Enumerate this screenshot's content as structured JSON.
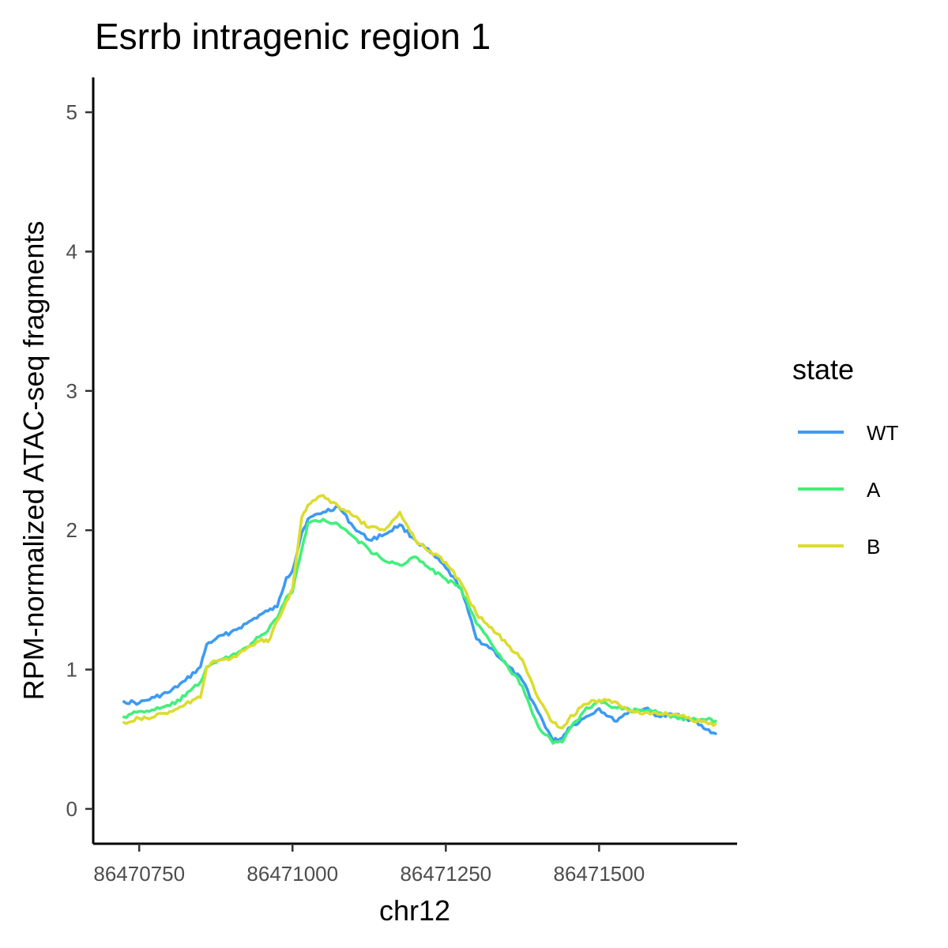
{
  "chart_data": {
    "type": "line",
    "title": "Esrrb intragenic region 1",
    "xlabel": "chr12",
    "ylabel": "RPM-normalized ATAC-seq fragments",
    "xlim": [
      86470675,
      86471725
    ],
    "ylim": [
      -0.25,
      5.25
    ],
    "xticks": [
      86470750,
      86471000,
      86471250,
      86471500
    ],
    "yticks": [
      0,
      1,
      2,
      3,
      4,
      5
    ],
    "grid": false,
    "legend": {
      "title": "state",
      "position": "right"
    },
    "x": [
      86470725,
      86470750,
      86470775,
      86470800,
      86470825,
      86470850,
      86470860,
      86470875,
      86470900,
      86470925,
      86470950,
      86470960,
      86470975,
      86470990,
      86471000,
      86471015,
      86471025,
      86471050,
      86471075,
      86471100,
      86471125,
      86471150,
      86471175,
      86471200,
      86471225,
      86471250,
      86471275,
      86471300,
      86471325,
      86471350,
      86471375,
      86471400,
      86471425,
      86471440,
      86471450,
      86471475,
      86471500,
      86471525,
      86471550,
      86471575,
      86471600,
      86471625,
      86471650,
      86471675,
      86471690
    ],
    "series": [
      {
        "name": "WT",
        "color": "#3d9bf1",
        "values": [
          0.77,
          0.76,
          0.8,
          0.84,
          0.92,
          1.02,
          1.18,
          1.22,
          1.27,
          1.33,
          1.4,
          1.42,
          1.45,
          1.66,
          1.71,
          1.98,
          2.08,
          2.13,
          2.17,
          2.02,
          1.93,
          1.97,
          2.04,
          1.93,
          1.84,
          1.73,
          1.58,
          1.22,
          1.15,
          1.03,
          0.92,
          0.7,
          0.49,
          0.51,
          0.58,
          0.65,
          0.72,
          0.63,
          0.7,
          0.72,
          0.66,
          0.68,
          0.64,
          0.57,
          0.54
        ]
      },
      {
        "name": "A",
        "color": "#41f07c",
        "values": [
          0.66,
          0.7,
          0.71,
          0.74,
          0.81,
          0.91,
          1.02,
          1.05,
          1.1,
          1.16,
          1.25,
          1.28,
          1.37,
          1.52,
          1.56,
          1.86,
          2.05,
          2.08,
          2.04,
          1.95,
          1.86,
          1.78,
          1.75,
          1.81,
          1.72,
          1.65,
          1.58,
          1.33,
          1.18,
          1.03,
          0.88,
          0.6,
          0.47,
          0.48,
          0.56,
          0.7,
          0.78,
          0.73,
          0.71,
          0.7,
          0.69,
          0.66,
          0.64,
          0.64,
          0.63
        ]
      },
      {
        "name": "B",
        "color": "#dcdc30",
        "values": [
          0.62,
          0.65,
          0.66,
          0.7,
          0.75,
          0.8,
          1.02,
          1.06,
          1.08,
          1.15,
          1.22,
          1.2,
          1.35,
          1.49,
          1.58,
          2.09,
          2.18,
          2.25,
          2.17,
          2.1,
          2.02,
          2.0,
          2.13,
          1.93,
          1.85,
          1.77,
          1.62,
          1.4,
          1.3,
          1.18,
          1.07,
          0.8,
          0.62,
          0.58,
          0.64,
          0.75,
          0.78,
          0.77,
          0.7,
          0.69,
          0.68,
          0.68,
          0.64,
          0.62,
          0.61
        ]
      }
    ]
  }
}
